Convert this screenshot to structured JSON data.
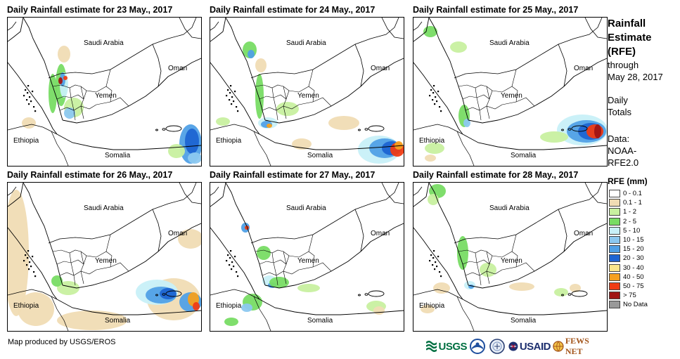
{
  "panels": [
    {
      "title": "Daily Rainfall estimate for 23 May., 2017"
    },
    {
      "title": "Daily Rainfall estimate for 24 May., 2017"
    },
    {
      "title": "Daily Rainfall estimate for 25 May., 2017"
    },
    {
      "title": "Daily Rainfall estimate for 26 May., 2017"
    },
    {
      "title": "Daily Rainfall estimate for 27 May., 2017"
    },
    {
      "title": "Daily Rainfall estimate for 28 May., 2017"
    }
  ],
  "map_labels": {
    "saudi": "Saudi Arabia",
    "oman": "Oman",
    "yemen": "Yemen",
    "ethiopia": "Ethiopia",
    "somalia": "Somalia"
  },
  "sidebar": {
    "title_line1": "Rainfall",
    "title_line2": "Estimate",
    "title_line3": "(RFE)",
    "through": "through",
    "date": "May 28, 2017",
    "daily": "Daily",
    "totals": "Totals",
    "data_label": "Data:",
    "source_line1": "NOAA-",
    "source_line2": "RFE2.0"
  },
  "legend": {
    "title": "RFE (mm)",
    "items": [
      {
        "label": "0 - 0.1",
        "color": "#ffffff"
      },
      {
        "label": "0.1 - 1",
        "color": "#f0dcb4"
      },
      {
        "label": "1 - 2",
        "color": "#c8f0a0"
      },
      {
        "label": "2 - 5",
        "color": "#78dc64"
      },
      {
        "label": "5 - 10",
        "color": "#c8f0f8"
      },
      {
        "label": "10 - 15",
        "color": "#8cc8f0"
      },
      {
        "label": "15 - 20",
        "color": "#50a0e6"
      },
      {
        "label": "20 - 30",
        "color": "#1e64d2"
      },
      {
        "label": "30 - 40",
        "color": "#fae68c"
      },
      {
        "label": "40 - 50",
        "color": "#f5a01e"
      },
      {
        "label": "50 - 75",
        "color": "#f03c14"
      },
      {
        "label": "> 75",
        "color": "#a01414"
      },
      {
        "label": "No Data",
        "color": "#999999"
      }
    ]
  },
  "footer": {
    "credit": "Map produced by USGS/EROS",
    "logo_usgs": "USGS",
    "logo_usaid": "USAID",
    "logo_fews": "FEWS NET"
  }
}
